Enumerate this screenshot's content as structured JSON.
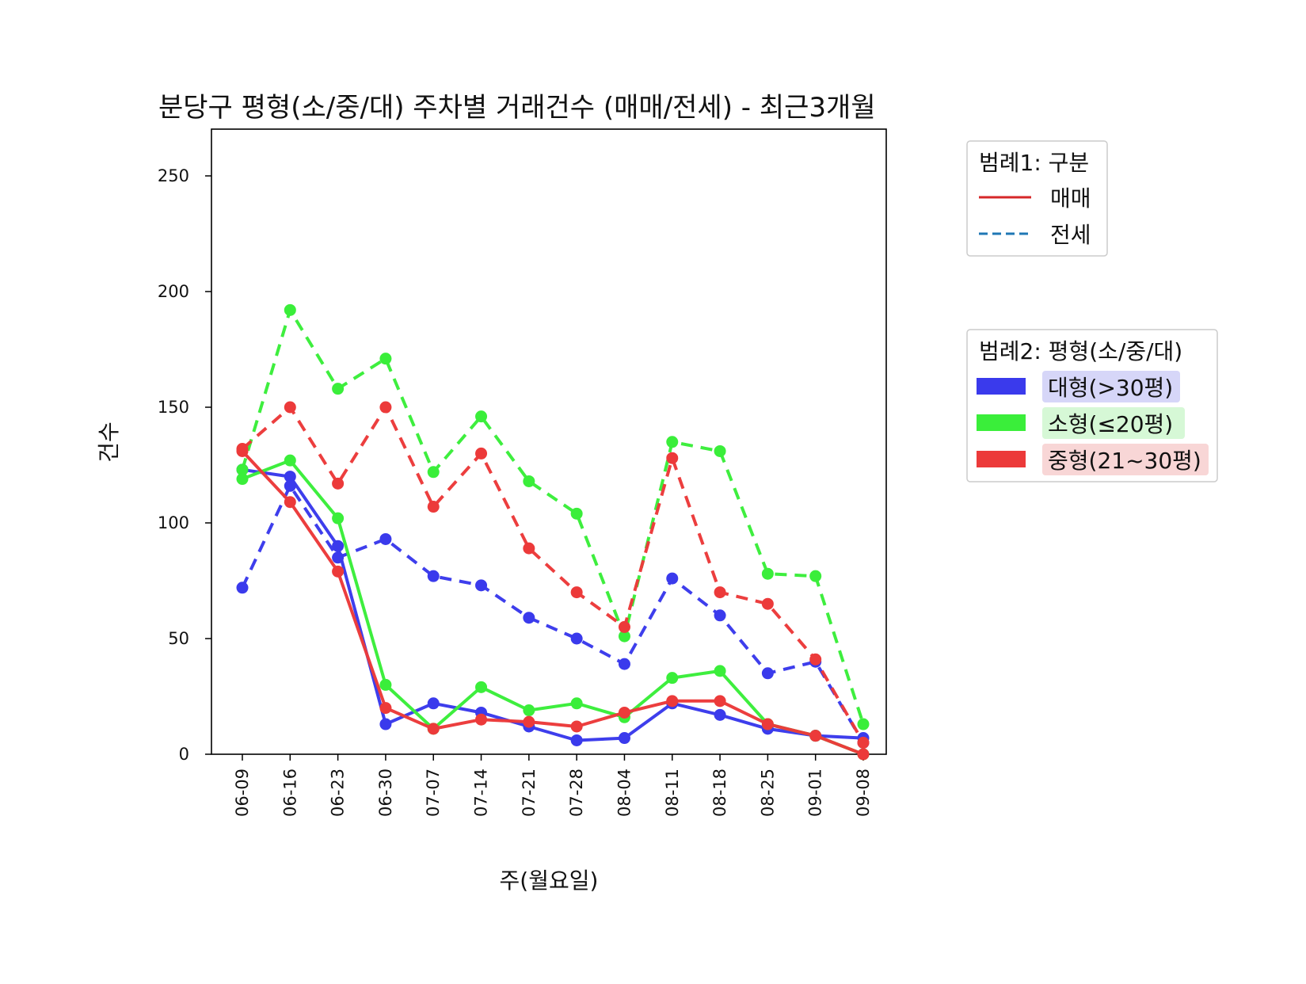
{
  "chart_data": {
    "type": "line",
    "title": "분당구 평형(소/중/대) 주차별 거래건수 (매매/전세) - 최근3개월",
    "xlabel": "주(월요일)",
    "ylabel": "건수",
    "ylim": [
      0,
      260
    ],
    "yticks": [
      "0",
      "50",
      "100",
      "150",
      "200",
      "250"
    ],
    "categories": [
      "06-09",
      "06-16",
      "06-23",
      "06-30",
      "07-07",
      "07-14",
      "07-21",
      "07-28",
      "08-04",
      "08-11",
      "08-18",
      "08-25",
      "09-01",
      "09-08"
    ],
    "series": [
      {
        "name": "대형(>30평) 매매",
        "size_key": "large",
        "deal_key": "sale",
        "values": [
          123,
          120,
          90,
          13,
          22,
          18,
          12,
          6,
          7,
          22,
          17,
          11,
          8,
          7
        ]
      },
      {
        "name": "대형(>30평) 전세",
        "size_key": "large",
        "deal_key": "jeonse",
        "values": [
          72,
          116,
          85,
          93,
          77,
          73,
          59,
          50,
          39,
          76,
          60,
          35,
          40,
          5
        ]
      },
      {
        "name": "소형(≤20평) 매매",
        "size_key": "small",
        "deal_key": "sale",
        "values": [
          119,
          127,
          102,
          30,
          11,
          29,
          19,
          22,
          16,
          33,
          36,
          13,
          8,
          0
        ]
      },
      {
        "name": "소형(≤20평) 전세",
        "size_key": "small",
        "deal_key": "jeonse",
        "values": [
          123,
          192,
          158,
          171,
          122,
          146,
          118,
          104,
          51,
          135,
          131,
          78,
          77,
          13
        ]
      },
      {
        "name": "중형(21~30평) 매매",
        "size_key": "medium",
        "deal_key": "sale",
        "values": [
          131,
          109,
          79,
          20,
          11,
          15,
          14,
          12,
          18,
          23,
          23,
          13,
          8,
          0
        ]
      },
      {
        "name": "중형(21~30평) 전세",
        "size_key": "medium",
        "deal_key": "jeonse",
        "values": [
          132,
          150,
          117,
          150,
          107,
          130,
          89,
          70,
          55,
          128,
          70,
          65,
          41,
          5
        ]
      }
    ],
    "colors": {
      "large": "#3a3aec",
      "small": "#3aee3a",
      "medium": "#ec3a3a"
    },
    "legend_placement": "outside-right"
  },
  "legend1": {
    "title": "범례1: 구분",
    "items": [
      {
        "label": "매매",
        "style": "solid",
        "color": "#d62728"
      },
      {
        "label": "전세",
        "style": "dashed",
        "color": "#1f77b4"
      }
    ]
  },
  "legend2": {
    "title": "범례2: 평형(소/중/대)",
    "items": [
      {
        "label": "대형(>30평)",
        "color": "#3a3aec",
        "bg": "#d6d6f8"
      },
      {
        "label": "소형(≤20평)",
        "color": "#3aee3a",
        "bg": "#d6f8d6"
      },
      {
        "label": "중형(21~30평)",
        "color": "#ec3a3a",
        "bg": "#f8d6d6"
      }
    ]
  }
}
